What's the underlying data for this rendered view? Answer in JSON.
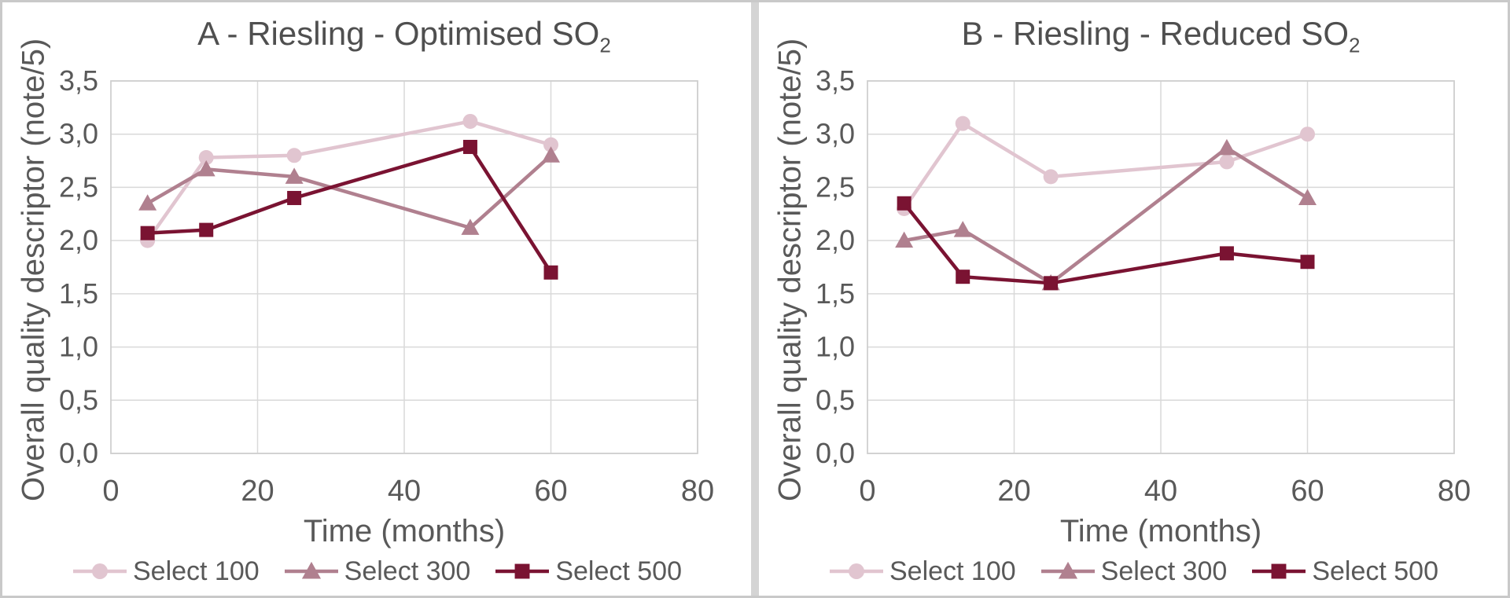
{
  "figure": {
    "background": "#ffffff",
    "frame_border_color": "#c9c9c9",
    "divider_color": "#d4d4d4"
  },
  "styles": {
    "grid_color": "#d9d9d9",
    "plot_border_color": "#cfcfcf",
    "axis_text_color": "#595959",
    "title_text_color": "#4f4f4f",
    "line_width": 4.5
  },
  "chart_data": [
    {
      "type": "line",
      "title_main": "A - Riesling - Optimised SO",
      "title_sub": "2",
      "xlabel": "Time (months)",
      "ylabel": "Overall quality descriptor (note/5)",
      "xlim": [
        0,
        80
      ],
      "ylim": [
        0,
        3.5
      ],
      "xticks": [
        0,
        20,
        40,
        60,
        80
      ],
      "ytick_labels": [
        "0,0",
        "0,5",
        "1,0",
        "1,5",
        "2,0",
        "2,5",
        "3,0",
        "3,5"
      ],
      "grid": true,
      "legend_position": "bottom",
      "x": [
        5,
        13,
        25,
        49,
        60
      ],
      "series": [
        {
          "name": "Select 100",
          "marker": "circle",
          "color": "#e1c5d0",
          "values": [
            2.0,
            2.78,
            2.8,
            3.12,
            2.9
          ]
        },
        {
          "name": "Select 300",
          "marker": "triangle",
          "color": "#b0808f",
          "values": [
            2.35,
            2.67,
            2.6,
            2.12,
            2.8
          ]
        },
        {
          "name": "Select 500",
          "marker": "square",
          "color": "#7a1332",
          "values": [
            2.07,
            2.1,
            2.4,
            2.88,
            1.7
          ]
        }
      ]
    },
    {
      "type": "line",
      "title_main": "B - Riesling - Reduced SO",
      "title_sub": "2",
      "xlabel": "Time (months)",
      "ylabel": "Overall quality descriptor (note/5)",
      "xlim": [
        0,
        80
      ],
      "ylim": [
        0,
        3.5
      ],
      "xticks": [
        0,
        20,
        40,
        60,
        80
      ],
      "ytick_labels": [
        "0,0",
        "0,5",
        "1,0",
        "1,5",
        "2,0",
        "2,5",
        "3,0",
        "3,5"
      ],
      "grid": true,
      "legend_position": "bottom",
      "x": [
        5,
        13,
        25,
        49,
        60
      ],
      "series": [
        {
          "name": "Select 100",
          "marker": "circle",
          "color": "#e1c5d0",
          "values": [
            2.3,
            3.1,
            2.6,
            2.74,
            3.0
          ]
        },
        {
          "name": "Select 300",
          "marker": "triangle",
          "color": "#b0808f",
          "values": [
            2.0,
            2.1,
            1.6,
            2.87,
            2.4
          ]
        },
        {
          "name": "Select 500",
          "marker": "square",
          "color": "#7a1332",
          "values": [
            2.35,
            1.66,
            1.6,
            1.88,
            1.8
          ]
        }
      ]
    }
  ]
}
